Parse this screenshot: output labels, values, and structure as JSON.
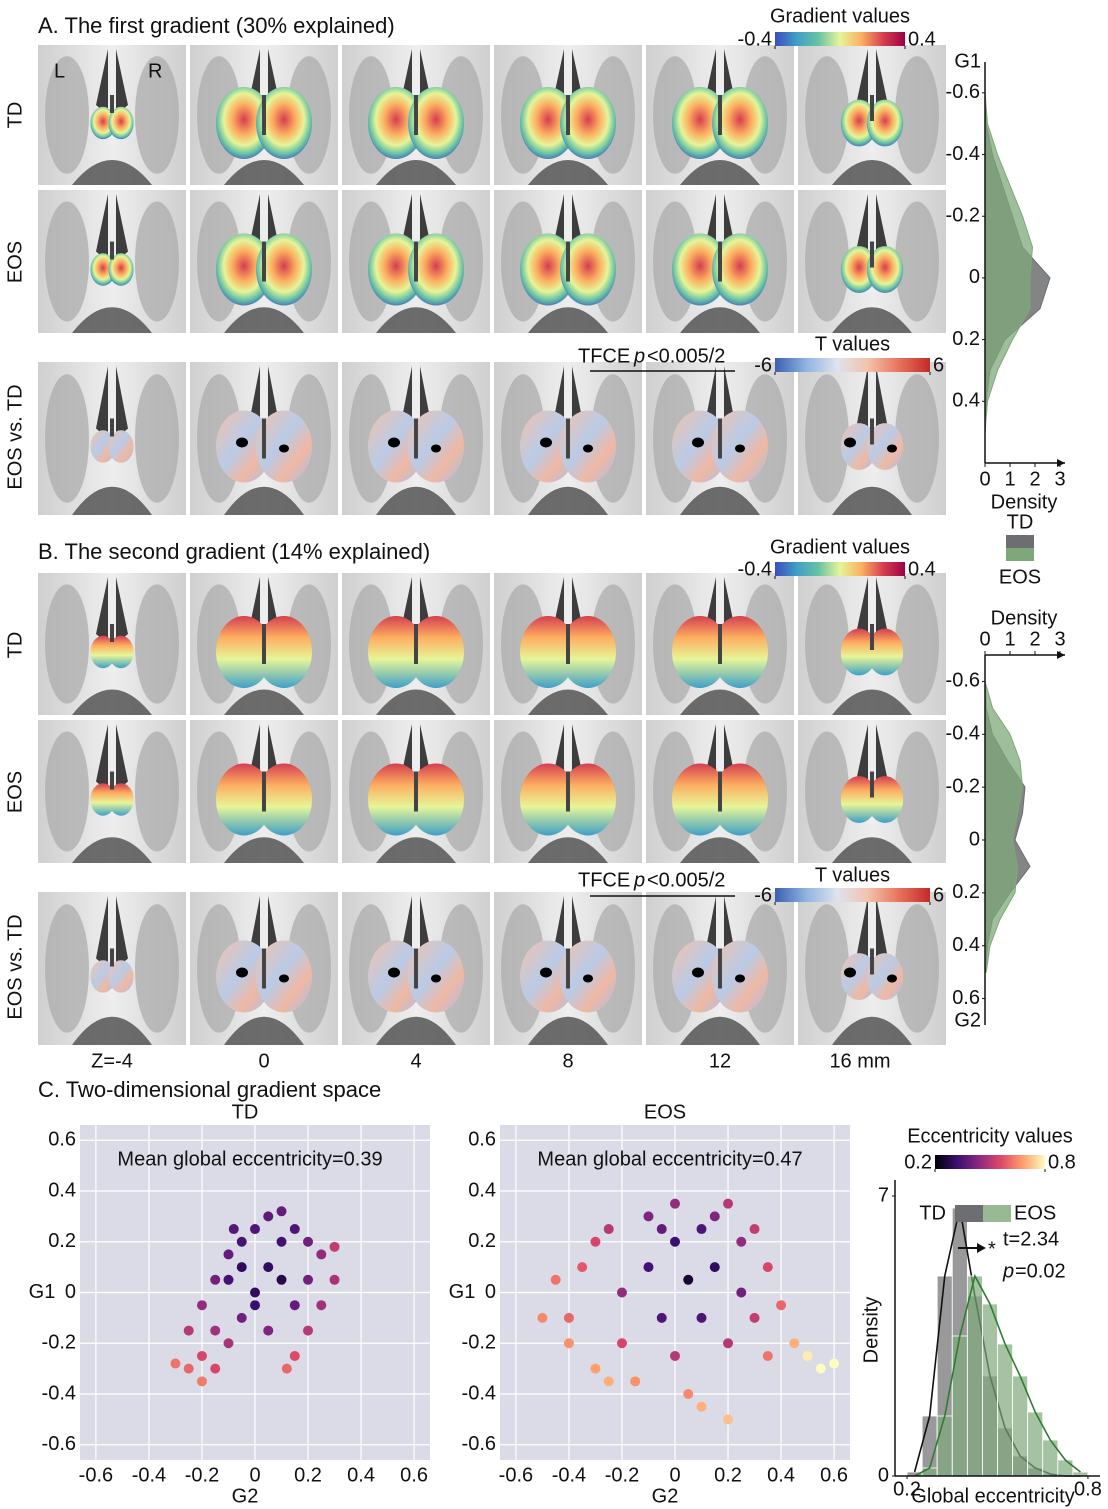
{
  "figure": {
    "panel_a_title": "A. The first gradient (30% explained)",
    "panel_b_title": "B. The second gradient (14% explained)",
    "panel_c_title": "C. Two-dimensional gradient space",
    "row_labels": [
      "TD",
      "EOS",
      "EOS vs. TD"
    ],
    "hemisphere_labels": [
      "L",
      "R"
    ],
    "slice_labels": [
      "Z=-4",
      "0",
      "4",
      "8",
      "12",
      "16 mm"
    ],
    "tfce_prefix": "TFCE",
    "tfce_p": "p",
    "tfce_threshold": "<0.005/2"
  },
  "chart_data": [
    {
      "type": "colorbar",
      "title": "Gradient values",
      "xlim": [
        -0.4,
        0.4
      ],
      "xticks": [
        -0.4,
        0.4
      ],
      "colors": [
        "#3b4cc0",
        "#3f9fc6",
        "#66c2a5",
        "#e6f598",
        "#fdae61",
        "#d53e4f",
        "#9e0142"
      ]
    },
    {
      "type": "colorbar",
      "title": "T values",
      "xlim": [
        -6,
        6
      ],
      "xticks": [
        -6,
        6
      ],
      "colors": [
        "#3b5fb0",
        "#8fb3df",
        "#dde3ee",
        "#f2c2ad",
        "#e8735a",
        "#c42a2a"
      ]
    },
    {
      "type": "colorbar",
      "title": "Gradient values",
      "xlim": [
        -0.4,
        0.4
      ],
      "xticks": [
        -0.4,
        0.4
      ],
      "colors": [
        "#3b4cc0",
        "#3f9fc6",
        "#66c2a5",
        "#e6f598",
        "#fdae61",
        "#d53e4f",
        "#9e0142"
      ]
    },
    {
      "type": "colorbar",
      "title": "T values",
      "xlim": [
        -6,
        6
      ],
      "xticks": [
        -6,
        6
      ],
      "colors": [
        "#3b5fb0",
        "#8fb3df",
        "#dde3ee",
        "#f2c2ad",
        "#e8735a",
        "#c42a2a"
      ]
    },
    {
      "type": "density",
      "ylabel": "G1",
      "xlabel": "Density",
      "x": [
        -0.6,
        -0.5,
        -0.4,
        -0.3,
        -0.2,
        -0.1,
        0,
        0.1,
        0.2,
        0.3,
        0.4,
        0.5
      ],
      "series": [
        {
          "name": "TD",
          "color": "#6d6e71",
          "values": [
            0,
            0.05,
            0.3,
            0.7,
            1.1,
            1.5,
            2.6,
            2.2,
            0.8,
            0.2,
            0.05,
            0
          ]
        },
        {
          "name": "EOS",
          "color": "#7fa87a",
          "values": [
            0,
            0.1,
            0.5,
            1.0,
            1.5,
            1.9,
            1.8,
            1.8,
            1.1,
            0.5,
            0.1,
            0
          ]
        }
      ],
      "xlim": [
        0,
        3.2
      ],
      "xticks": [
        0,
        1,
        2,
        3
      ],
      "ylim": [
        -0.7,
        0.6
      ],
      "yticks": [
        -0.6,
        -0.4,
        -0.2,
        0,
        0.2,
        0.4
      ]
    },
    {
      "type": "density",
      "ylabel": "G2",
      "xlabel": "Density",
      "x": [
        -0.6,
        -0.5,
        -0.4,
        -0.3,
        -0.2,
        -0.1,
        0,
        0.1,
        0.2,
        0.3,
        0.4,
        0.5
      ],
      "series": [
        {
          "name": "TD",
          "color": "#6d6e71",
          "values": [
            0,
            0.05,
            0.3,
            0.9,
            1.6,
            1.5,
            1.2,
            1.8,
            1.0,
            0.3,
            0.1,
            0.02
          ]
        },
        {
          "name": "EOS",
          "color": "#7fa87a",
          "values": [
            0,
            0.3,
            1.0,
            1.4,
            1.5,
            1.3,
            1.1,
            1.3,
            1.2,
            0.6,
            0.2,
            0.05
          ]
        }
      ],
      "xlim": [
        0,
        3.2
      ],
      "xticks": [
        0,
        1,
        2,
        3
      ],
      "ylim": [
        -0.7,
        0.7
      ],
      "yticks": [
        -0.6,
        -0.4,
        -0.2,
        0,
        0.2,
        0.4,
        0.6
      ]
    },
    {
      "type": "scatter",
      "title": "TD",
      "annotation": "Mean global eccentricity=0.39",
      "xlabel": "G2",
      "ylabel": "G1",
      "x": [
        -0.3,
        -0.25,
        -0.2,
        -0.15,
        -0.25,
        -0.2,
        -0.15,
        -0.1,
        -0.05,
        0,
        0.05,
        0.1,
        0.15,
        0.2,
        0.25,
        0.3,
        0.3,
        0.25,
        0.2,
        0.15,
        0.12,
        -0.1,
        -0.05,
        0,
        0.05,
        0.1,
        -0.1,
        0,
        0.05,
        -0.05,
        0.1,
        -0.15,
        -0.2,
        0.2,
        0.15,
        -0.08
      ],
      "values": [
        -0.28,
        -0.3,
        -0.35,
        -0.3,
        -0.15,
        -0.05,
        0.05,
        0.15,
        0.2,
        0.25,
        0.3,
        0.32,
        0.25,
        0.2,
        0.15,
        0.18,
        0.05,
        -0.05,
        -0.15,
        -0.25,
        -0.3,
        -0.2,
        -0.1,
        0,
        0.1,
        0.05,
        0.05,
        -0.05,
        -0.15,
        0.1,
        0.2,
        -0.15,
        -0.25,
        0.05,
        -0.05,
        0.25
      ],
      "color_values": [
        0.62,
        0.6,
        0.63,
        0.55,
        0.5,
        0.45,
        0.4,
        0.38,
        0.34,
        0.35,
        0.37,
        0.38,
        0.35,
        0.4,
        0.45,
        0.52,
        0.48,
        0.47,
        0.5,
        0.56,
        0.6,
        0.48,
        0.4,
        0.3,
        0.3,
        0.28,
        0.33,
        0.32,
        0.42,
        0.3,
        0.33,
        0.47,
        0.55,
        0.4,
        0.38,
        0.36
      ],
      "clim": [
        0.2,
        0.8
      ],
      "colors": [
        "#000004",
        "#3b0f70",
        "#8c2981",
        "#de4968",
        "#fe9f6d",
        "#fcfdbf"
      ],
      "xlim": [
        -0.66,
        0.66
      ],
      "ylim": [
        -0.66,
        0.66
      ],
      "xticks": [
        -0.6,
        -0.4,
        -0.2,
        0,
        0.2,
        0.4,
        0.6
      ],
      "yticks": [
        -0.6,
        -0.4,
        -0.2,
        0,
        0.2,
        0.4,
        0.6
      ],
      "grid": true
    },
    {
      "type": "scatter",
      "title": "EOS",
      "annotation": "Mean global eccentricity=0.47",
      "xlabel": "G2",
      "ylabel": "G1",
      "x": [
        -0.5,
        -0.45,
        -0.4,
        -0.35,
        -0.3,
        -0.25,
        -0.2,
        -0.2,
        -0.15,
        -0.1,
        -0.1,
        -0.05,
        0,
        0,
        0,
        0.05,
        0.05,
        0.1,
        0.1,
        0.1,
        0.15,
        0.15,
        0.2,
        0.2,
        0.25,
        0.25,
        0.3,
        0.35,
        0.35,
        0.4,
        0.45,
        0.5,
        0.55,
        -0.3,
        -0.4,
        -0.25,
        -0.05,
        0.2,
        0.3,
        0.6
      ],
      "values": [
        -0.1,
        0.05,
        -0.2,
        0.1,
        -0.3,
        0.25,
        0,
        -0.2,
        -0.35,
        0.3,
        0.1,
        -0.1,
        0.35,
        0.2,
        -0.25,
        0.05,
        -0.4,
        0.25,
        -0.1,
        -0.45,
        0.3,
        0.1,
        -0.5,
        -0.2,
        0.2,
        0,
        -0.1,
        0.1,
        -0.25,
        -0.05,
        -0.2,
        -0.25,
        -0.3,
        0.2,
        -0.1,
        -0.35,
        0.25,
        0.35,
        0.25,
        -0.28
      ],
      "color_values": [
        0.65,
        0.62,
        0.66,
        0.58,
        0.68,
        0.5,
        0.45,
        0.55,
        0.66,
        0.42,
        0.33,
        0.35,
        0.45,
        0.32,
        0.5,
        0.25,
        0.65,
        0.35,
        0.35,
        0.7,
        0.42,
        0.3,
        0.72,
        0.5,
        0.45,
        0.4,
        0.52,
        0.55,
        0.62,
        0.6,
        0.7,
        0.78,
        0.8,
        0.55,
        0.6,
        0.7,
        0.38,
        0.5,
        0.52,
        0.8
      ],
      "clim": [
        0.2,
        0.8
      ],
      "colors": [
        "#000004",
        "#3b0f70",
        "#8c2981",
        "#de4968",
        "#fe9f6d",
        "#fcfdbf"
      ],
      "xlim": [
        -0.66,
        0.66
      ],
      "ylim": [
        -0.66,
        0.66
      ],
      "xticks": [
        -0.6,
        -0.4,
        -0.2,
        0,
        0.2,
        0.4,
        0.6
      ],
      "yticks": [
        -0.6,
        -0.4,
        -0.2,
        0,
        0.2,
        0.4,
        0.6
      ],
      "grid": true
    },
    {
      "type": "colorbar",
      "title": "Eccentricity values",
      "xlim": [
        0.2,
        0.8
      ],
      "xticks": [
        0.2,
        0.8
      ],
      "colors": [
        "#000004",
        "#3b0f70",
        "#8c2981",
        "#de4968",
        "#fe9f6d",
        "#fcfdbf"
      ]
    },
    {
      "type": "histogram",
      "xlabel": "Global eccentricity",
      "ylabel": "Density",
      "bins": [
        0.2,
        0.25,
        0.3,
        0.35,
        0.4,
        0.45,
        0.5,
        0.55,
        0.6,
        0.65,
        0.7,
        0.75,
        0.8
      ],
      "series": [
        {
          "name": "TD",
          "color": "#6d6e71",
          "line_color": "#111111",
          "values": [
            0.1,
            1.5,
            5.0,
            6.7,
            4.5,
            2.5,
            1.2,
            0.5,
            0.2,
            0.05,
            0,
            0
          ]
        },
        {
          "name": "EOS",
          "color": "#7fa87a",
          "line_color": "#2e7d32",
          "values": [
            0,
            0.2,
            1.5,
            3.5,
            5.0,
            4.3,
            3.3,
            2.5,
            1.6,
            0.9,
            0.4,
            0.1
          ]
        }
      ],
      "annotations": {
        "t": "t=2.34",
        "p_symbol": "p",
        "p_value": "=0.02",
        "star": "*"
      },
      "xlim": [
        0.16,
        0.84
      ],
      "xticks": [
        0.2,
        0.8
      ],
      "ylim": [
        0,
        7.4
      ],
      "yticks": [
        0,
        7
      ]
    }
  ]
}
